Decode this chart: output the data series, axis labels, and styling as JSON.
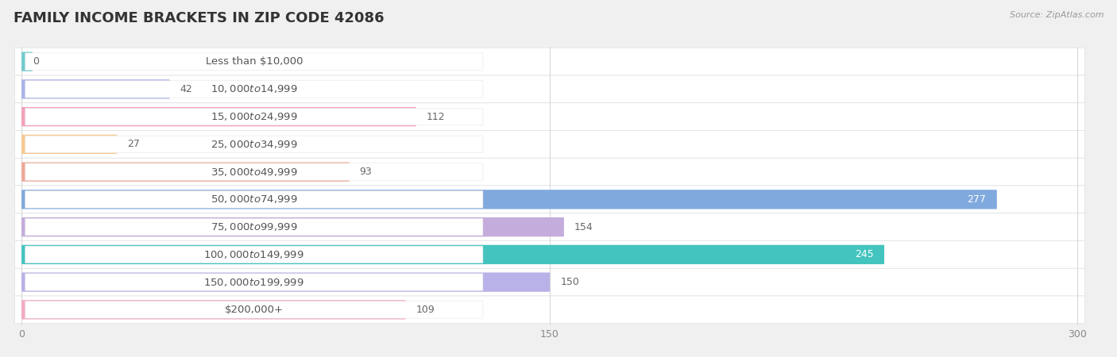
{
  "title": "FAMILY INCOME BRACKETS IN ZIP CODE 42086",
  "source": "Source: ZipAtlas.com",
  "categories": [
    "Less than $10,000",
    "$10,000 to $14,999",
    "$15,000 to $24,999",
    "$25,000 to $34,999",
    "$35,000 to $49,999",
    "$50,000 to $74,999",
    "$75,000 to $99,999",
    "$100,000 to $149,999",
    "$150,000 to $199,999",
    "$200,000+"
  ],
  "values": [
    0,
    42,
    112,
    27,
    93,
    277,
    154,
    245,
    150,
    109
  ],
  "bar_colors": [
    "#72cccc",
    "#aab2e8",
    "#f4a0b8",
    "#f8c890",
    "#f0a898",
    "#80aade",
    "#c4acdc",
    "#44c4be",
    "#b8b2e8",
    "#f4a8c4"
  ],
  "xlim": [
    0,
    300
  ],
  "xticks": [
    0,
    150,
    300
  ],
  "background_color": "#f0f0f0",
  "row_bg_color": "#ffffff",
  "title_fontsize": 13,
  "label_fontsize": 9.5,
  "value_fontsize": 9
}
